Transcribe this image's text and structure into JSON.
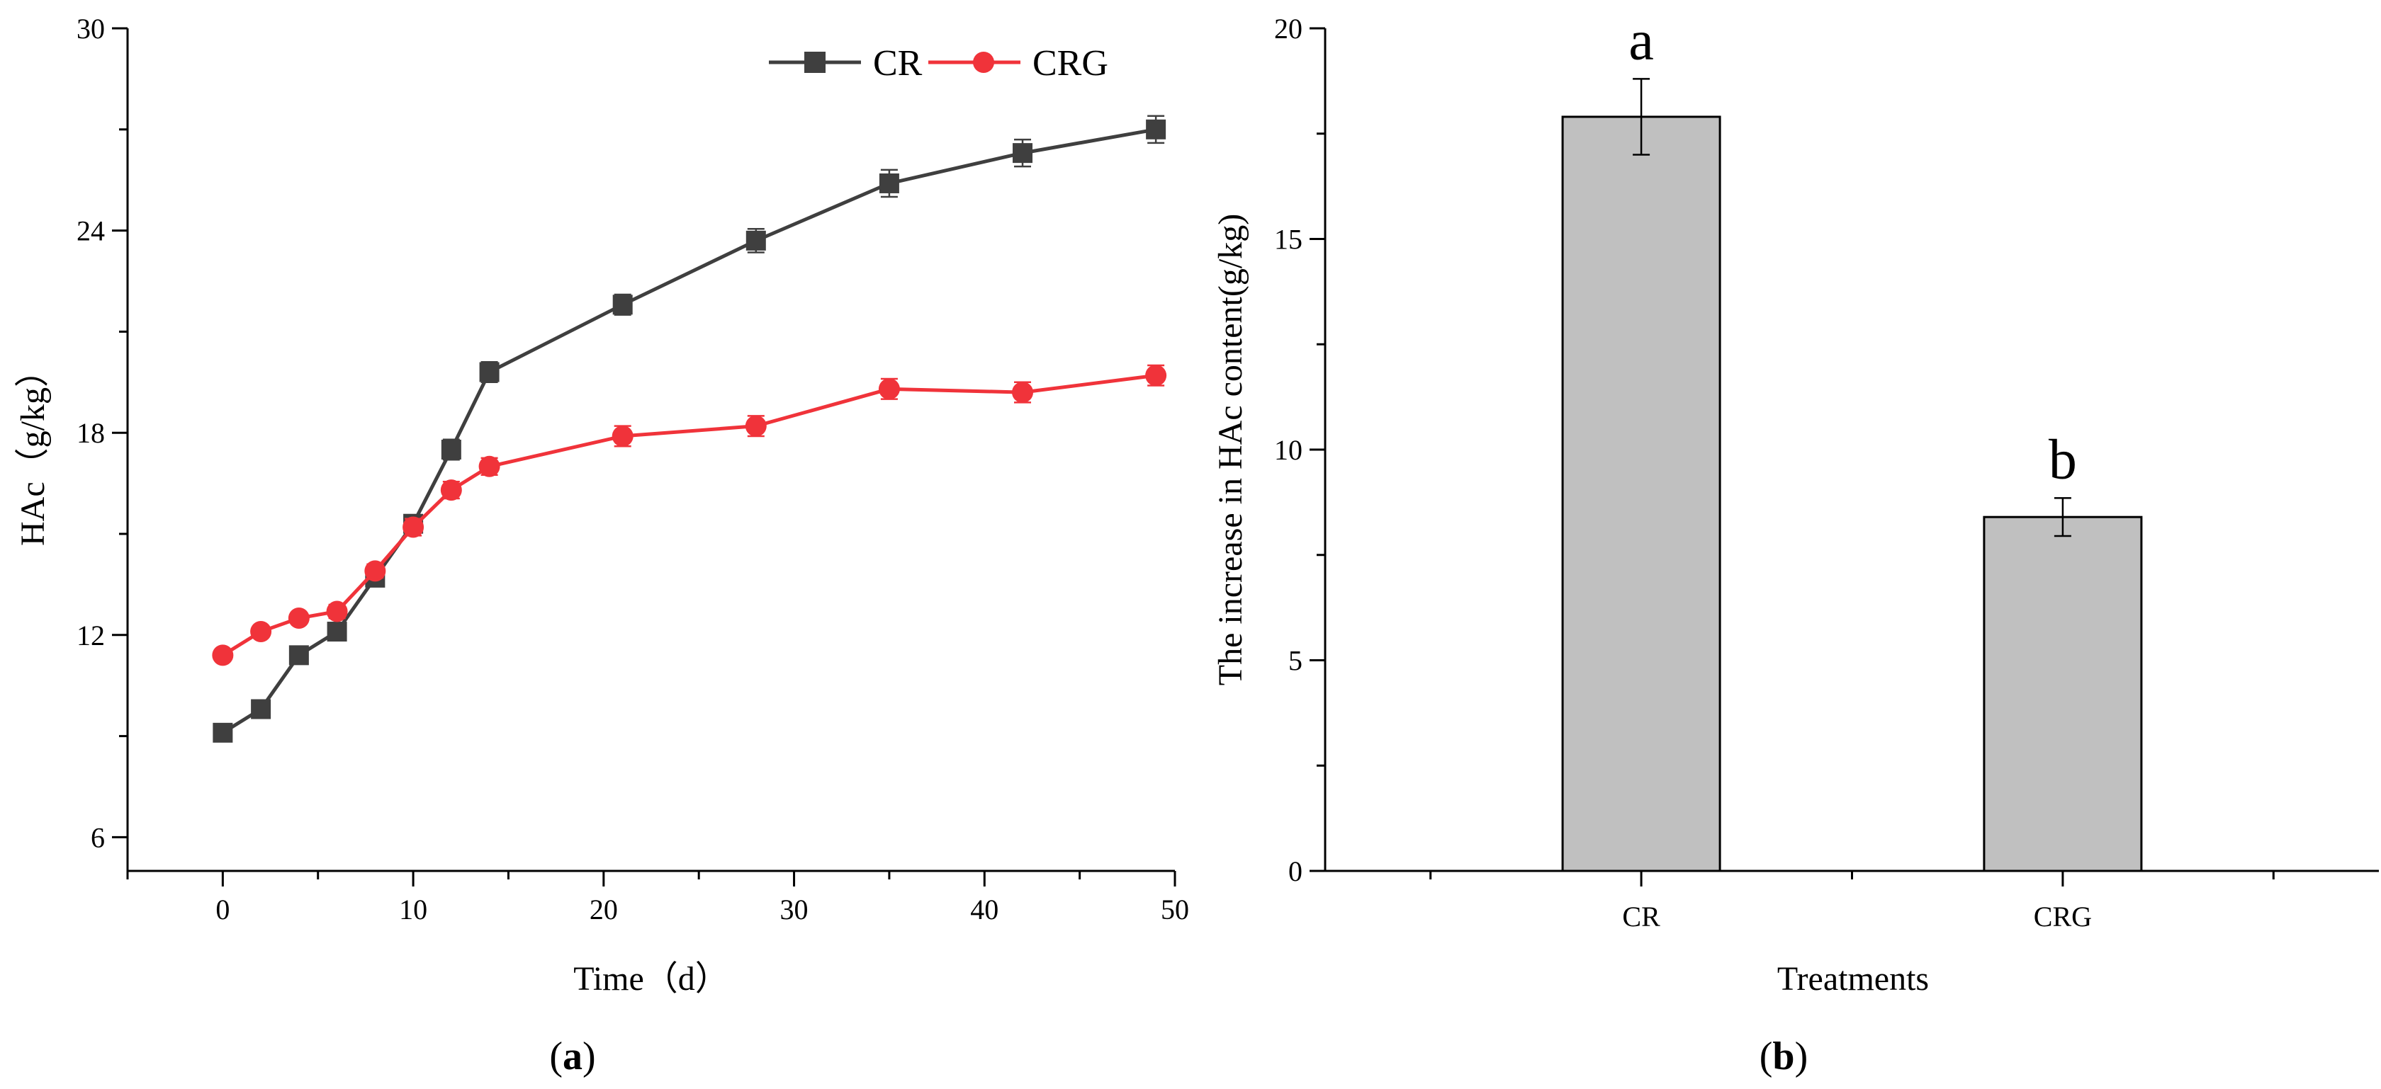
{
  "colors": {
    "CR": "#3f3f3f",
    "CRG": "#f0333a",
    "bar_fill": "#c0c0c0",
    "bar_stroke": "#000000"
  },
  "chart_data": [
    {
      "type": "line",
      "panel_label": "(a)",
      "panel_label_parts": [
        "(",
        "a",
        ")"
      ],
      "xlabel": "Time（d）",
      "ylabel": "HAc（g/kg）",
      "xlim": [
        -5,
        50
      ],
      "ylim": [
        5,
        30
      ],
      "xticks": [
        0,
        10,
        20,
        30,
        40,
        50
      ],
      "yticks": [
        6,
        12,
        18,
        24,
        30
      ],
      "legend": [
        "CR",
        "CRG"
      ],
      "legend_position": "top-right",
      "x": [
        0,
        2,
        4,
        6,
        8,
        10,
        12,
        14,
        21,
        28,
        35,
        42,
        49
      ],
      "series": [
        {
          "name": "CR",
          "marker": "square",
          "values": [
            9.1,
            9.8,
            11.4,
            12.1,
            13.7,
            15.3,
            17.5,
            19.8,
            21.8,
            23.7,
            25.4,
            26.3,
            27.0
          ],
          "errors": [
            0.15,
            0.15,
            0.2,
            0.2,
            0.25,
            0.25,
            0.3,
            0.3,
            0.3,
            0.35,
            0.4,
            0.4,
            0.4
          ]
        },
        {
          "name": "CRG",
          "marker": "circle",
          "values": [
            11.4,
            12.1,
            12.5,
            12.7,
            13.9,
            15.2,
            16.3,
            17.0,
            17.9,
            18.2,
            19.3,
            19.2,
            19.7
          ],
          "errors": [
            0.15,
            0.15,
            0.15,
            0.2,
            0.2,
            0.25,
            0.25,
            0.25,
            0.3,
            0.3,
            0.3,
            0.3,
            0.3
          ]
        }
      ]
    },
    {
      "type": "bar",
      "panel_label": "(b)",
      "panel_label_parts": [
        "(",
        "b",
        ")"
      ],
      "xlabel": "Treatments",
      "ylabel": "The increase in HAc content(g/kg)",
      "ylim": [
        0,
        20
      ],
      "yticks": [
        0,
        5,
        10,
        15,
        20
      ],
      "categories": [
        "CR",
        "CRG"
      ],
      "values": [
        17.9,
        8.4
      ],
      "errors": [
        0.9,
        0.45
      ],
      "significance": [
        "a",
        "b"
      ]
    }
  ]
}
